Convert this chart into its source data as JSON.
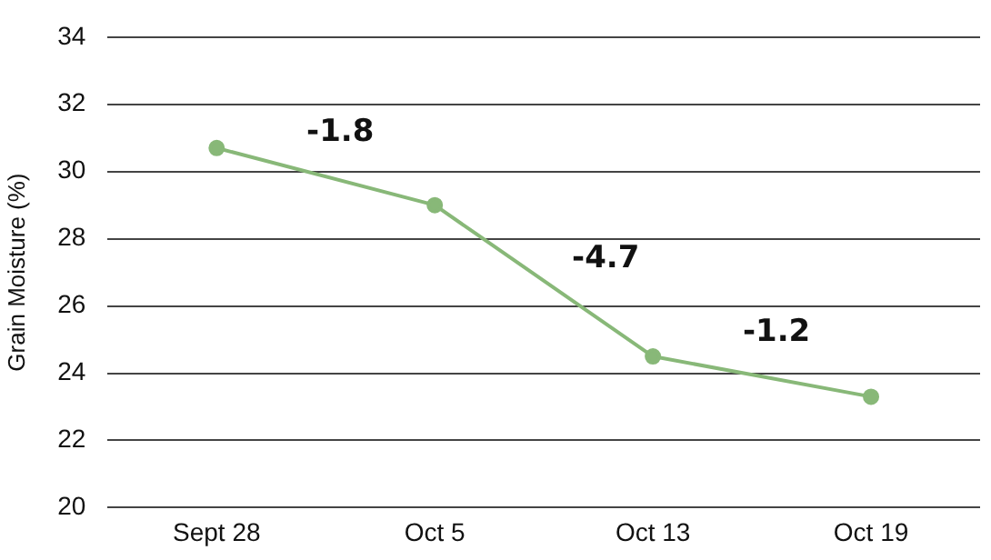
{
  "chart_data": {
    "type": "line",
    "ylabel": "Grain Moisture (%)",
    "categories": [
      "Sept 28",
      "Oct 5",
      "Oct 13",
      "Oct 19"
    ],
    "series": [
      {
        "color": "#88b878",
        "values": [
          30.7,
          29.0,
          24.5,
          23.3
        ]
      }
    ],
    "ylim": [
      20,
      34
    ],
    "yticks": [
      20,
      22,
      24,
      26,
      28,
      30,
      32,
      34
    ],
    "grid": "y",
    "marker": "circle",
    "line_style": "solid",
    "legend": false,
    "annotations": [
      "-1.8",
      "-4.7",
      "-1.2"
    ]
  }
}
